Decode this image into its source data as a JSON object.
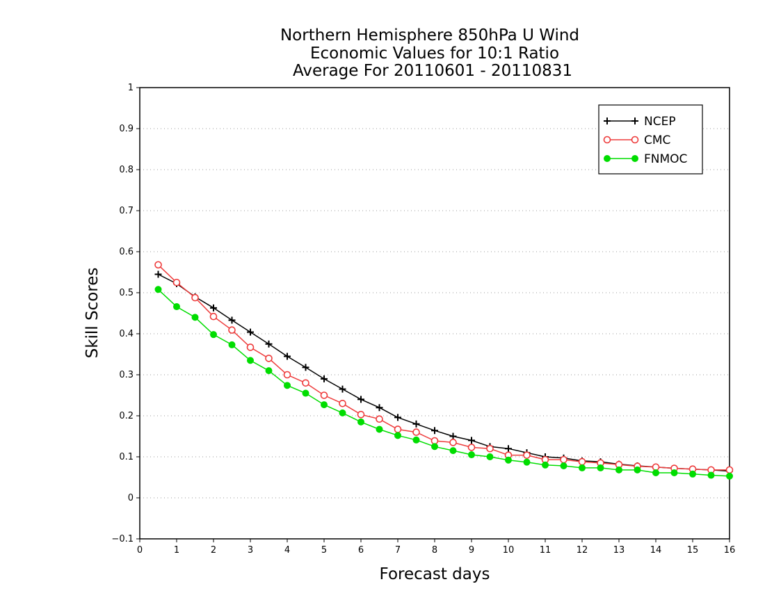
{
  "chart_data": {
    "type": "line",
    "title": [
      "Northern Hemisphere 850hPa U Wind",
      "Economic Values for 10:1 Ratio",
      "Average For 20110601 - 20110831"
    ],
    "xlabel": "Forecast days",
    "ylabel": "Skill Scores",
    "xlim": [
      0,
      16
    ],
    "ylim": [
      -0.1,
      1
    ],
    "xticks": [
      0,
      1,
      2,
      3,
      4,
      5,
      6,
      7,
      8,
      9,
      10,
      11,
      12,
      13,
      14,
      15,
      16
    ],
    "yticks": [
      -0.1,
      0,
      0.1,
      0.2,
      0.3,
      0.4,
      0.5,
      0.6,
      0.7,
      0.8,
      0.9,
      1
    ],
    "ytick_labels": [
      "−0.1",
      "0",
      "0.1",
      "0.2",
      "0.3",
      "0.4",
      "0.5",
      "0.6",
      "0.7",
      "0.8",
      "0.9",
      "1"
    ],
    "grid": "horizontal dotted",
    "legend_position": "top-right",
    "x": [
      0.5,
      1,
      1.5,
      2,
      2.5,
      3,
      3.5,
      4,
      4.5,
      5,
      5.5,
      6,
      6.5,
      7,
      7.5,
      8,
      8.5,
      9,
      9.5,
      10,
      10.5,
      11,
      11.5,
      12,
      12.5,
      13,
      13.5,
      14,
      14.5,
      15,
      15.5,
      16
    ],
    "series": [
      {
        "name": "NCEP",
        "color": "#000000",
        "marker": "plus",
        "values": [
          0.545,
          0.522,
          0.49,
          0.463,
          0.433,
          0.404,
          0.375,
          0.345,
          0.318,
          0.29,
          0.265,
          0.24,
          0.22,
          0.196,
          0.18,
          0.164,
          0.15,
          0.14,
          0.125,
          0.12,
          0.11,
          0.1,
          0.097,
          0.09,
          0.088,
          0.082,
          0.078,
          0.075,
          0.072,
          0.07,
          0.068,
          0.065
        ]
      },
      {
        "name": "CMC",
        "color": "#ee3b3b",
        "marker": "open-circle",
        "values": [
          0.568,
          0.525,
          0.488,
          0.442,
          0.409,
          0.367,
          0.34,
          0.3,
          0.28,
          0.25,
          0.23,
          0.203,
          0.192,
          0.167,
          0.16,
          0.139,
          0.135,
          0.123,
          0.12,
          0.104,
          0.104,
          0.093,
          0.093,
          0.088,
          0.085,
          0.081,
          0.077,
          0.075,
          0.072,
          0.07,
          0.068,
          0.068
        ]
      },
      {
        "name": "FNMOC",
        "color": "#00dd00",
        "marker": "filled-circle",
        "values": [
          0.508,
          0.466,
          0.44,
          0.398,
          0.373,
          0.335,
          0.31,
          0.274,
          0.255,
          0.227,
          0.207,
          0.185,
          0.167,
          0.152,
          0.141,
          0.125,
          0.115,
          0.105,
          0.1,
          0.092,
          0.087,
          0.08,
          0.078,
          0.073,
          0.073,
          0.068,
          0.068,
          0.061,
          0.061,
          0.058,
          0.055,
          0.053
        ]
      }
    ]
  }
}
